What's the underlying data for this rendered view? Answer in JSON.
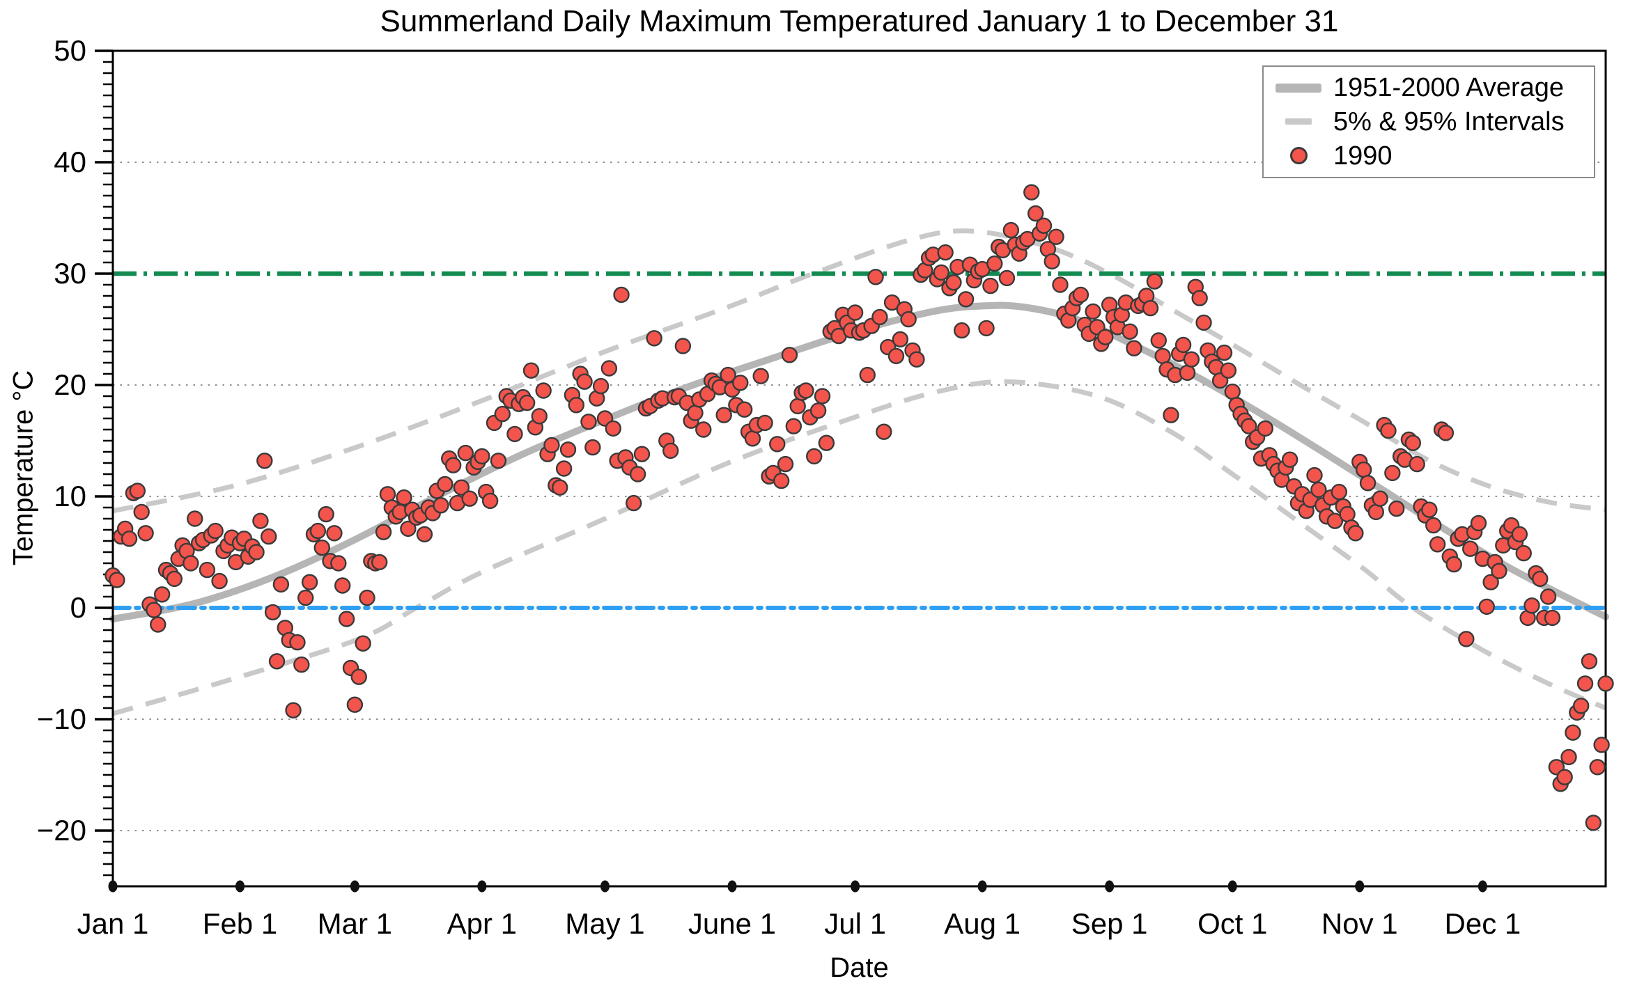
{
  "chart_data": {
    "type": "scatter",
    "title": "Summerland Daily Maximum Temperatured January 1 to December 31",
    "xlabel": "Date",
    "ylabel": "Temperature °C",
    "x_axis": {
      "total_days": 365,
      "month_start_days": [
        0,
        31,
        59,
        90,
        120,
        151,
        181,
        212,
        243,
        273,
        304,
        334
      ],
      "month_labels": [
        "Jan 1",
        "Feb 1",
        "Mar 1",
        "Apr 1",
        "May 1",
        "June 1",
        "Jul 1",
        "Aug 1",
        "Sep 1",
        "Oct 1",
        "Nov 1",
        "Dec 1"
      ]
    },
    "y_axis": {
      "range": [
        -25,
        50
      ],
      "major_tick_values": [
        -20,
        -10,
        0,
        10,
        20,
        30,
        40,
        50
      ],
      "major_tick_labels": [
        "−20",
        "−10",
        "0",
        "10",
        "20",
        "30",
        "40",
        "50"
      ],
      "minor_tick_step": 1,
      "gridline_values": [
        40,
        20,
        10,
        -10,
        -20
      ],
      "gridline_color": "#8f8f8f"
    },
    "reference_lines": [
      {
        "name": "30C-threshold-line",
        "value": 30,
        "color": "#128a50",
        "dash": "34 10 5 10",
        "width": 6.5,
        "cap": "butt"
      },
      {
        "name": "0C-freezing-line",
        "value": 0,
        "color": "#2e9ff2",
        "dash": "24 9 5 9",
        "width": 6,
        "cap": "round"
      }
    ],
    "average_series": {
      "name": "1951-2000 Average",
      "color": "#b5b5b5",
      "width": 10,
      "points": [
        [
          0,
          -1.0
        ],
        [
          20,
          0.4
        ],
        [
          40,
          2.9
        ],
        [
          60,
          6.3
        ],
        [
          80,
          10.2
        ],
        [
          100,
          13.8
        ],
        [
          120,
          16.9
        ],
        [
          140,
          19.8
        ],
        [
          160,
          22.3
        ],
        [
          180,
          24.7
        ],
        [
          200,
          26.6
        ],
        [
          212,
          27.1
        ],
        [
          222,
          27.0
        ],
        [
          235,
          25.9
        ],
        [
          250,
          23.4
        ],
        [
          265,
          20.6
        ],
        [
          280,
          17.4
        ],
        [
          295,
          14.0
        ],
        [
          310,
          10.5
        ],
        [
          325,
          7.0
        ],
        [
          340,
          3.7
        ],
        [
          352,
          1.4
        ],
        [
          364,
          -0.8
        ]
      ]
    },
    "interval_series": [
      {
        "name": "95% Interval",
        "color": "#c9c9c9",
        "width": 7,
        "dash": "30 19",
        "points": [
          [
            0,
            8.7
          ],
          [
            30,
            11.0
          ],
          [
            60,
            14.5
          ],
          [
            90,
            18.6
          ],
          [
            120,
            23.0
          ],
          [
            150,
            27.0
          ],
          [
            170,
            29.9
          ],
          [
            195,
            33.1
          ],
          [
            210,
            33.8
          ],
          [
            228,
            32.4
          ],
          [
            243,
            30.0
          ],
          [
            260,
            26.4
          ],
          [
            275,
            23.2
          ],
          [
            290,
            19.9
          ],
          [
            305,
            16.7
          ],
          [
            320,
            13.4
          ],
          [
            335,
            11.0
          ],
          [
            350,
            9.5
          ],
          [
            364,
            8.8
          ]
        ]
      },
      {
        "name": "5% Interval",
        "color": "#c9c9c9",
        "width": 7,
        "dash": "30 19",
        "points": [
          [
            0,
            -9.5
          ],
          [
            30,
            -6.3
          ],
          [
            60,
            -2.8
          ],
          [
            74,
            0.0
          ],
          [
            90,
            3.2
          ],
          [
            120,
            8.0
          ],
          [
            150,
            13.0
          ],
          [
            180,
            17.0
          ],
          [
            200,
            19.3
          ],
          [
            218,
            20.3
          ],
          [
            240,
            19.0
          ],
          [
            258,
            15.8
          ],
          [
            273,
            12.0
          ],
          [
            290,
            7.5
          ],
          [
            305,
            3.5
          ],
          [
            317,
            0.0
          ],
          [
            334,
            -3.8
          ],
          [
            350,
            -6.8
          ],
          [
            364,
            -9.0
          ]
        ]
      }
    ],
    "scatter_series": {
      "name": "1990",
      "fill": "#f3544c",
      "edge": "#3a3a3a",
      "radius": 10.5,
      "daily_temps_by_month": [
        [
          2.9,
          2.5,
          6.4,
          7.1,
          6.2,
          10.3,
          10.5,
          8.6,
          6.7,
          0.3,
          -0.2,
          -1.5,
          1.2,
          3.4,
          3.1,
          2.6,
          4.4,
          5.6,
          5.1,
          4.0,
          8.0,
          5.8,
          6.1,
          3.4,
          6.5,
          6.9,
          2.4,
          5.1,
          5.6,
          6.3,
          4.1
        ],
        [
          5.8,
          6.2,
          4.6,
          5.5,
          5.0,
          7.8,
          13.2,
          6.4,
          -0.4,
          -4.8,
          2.1,
          -1.8,
          -2.9,
          -9.2,
          -3.1,
          -5.1,
          0.9,
          2.3,
          6.6,
          6.9,
          5.4,
          8.4,
          4.2,
          6.7,
          4.0,
          2.0,
          -1.0,
          -5.4
        ],
        [
          -8.7,
          -6.2,
          -3.2,
          0.9,
          4.2,
          4.0,
          4.1,
          6.8,
          10.2,
          9.0,
          8.2,
          8.6,
          9.9,
          7.1,
          8.8,
          8.1,
          8.3,
          6.6,
          9.0,
          8.5,
          10.5,
          9.2,
          11.1,
          13.4,
          12.8,
          9.4,
          10.8,
          13.9,
          9.8,
          12.6,
          13.1
        ],
        [
          13.6,
          10.4,
          9.6,
          16.6,
          13.2,
          17.4,
          19.0,
          18.6,
          15.6,
          18.3,
          18.9,
          18.4,
          21.3,
          16.2,
          17.2,
          19.5,
          13.8,
          14.6,
          11.0,
          10.8,
          12.5,
          14.2,
          19.1,
          18.2,
          21.0,
          20.3,
          16.7,
          14.4,
          18.8,
          19.9
        ],
        [
          17.0,
          21.5,
          16.1,
          13.2,
          28.1,
          13.5,
          12.6,
          9.4,
          12.0,
          13.8,
          17.9,
          18.1,
          24.2,
          18.6,
          18.8,
          15.0,
          14.1,
          18.9,
          19.0,
          23.5,
          18.4,
          16.8,
          17.5,
          18.7,
          16.0,
          19.2,
          20.4,
          20.1,
          19.8,
          17.3,
          20.9
        ],
        [
          19.6,
          18.2,
          20.2,
          17.8,
          15.8,
          15.2,
          16.4,
          20.8,
          16.6,
          11.8,
          12.1,
          14.7,
          11.4,
          12.9,
          22.7,
          16.3,
          18.1,
          19.3,
          19.5,
          17.1,
          13.6,
          17.7,
          19.0,
          14.8,
          24.8,
          25.1,
          24.4,
          26.3,
          25.6,
          24.9
        ],
        [
          26.5,
          24.7,
          24.9,
          20.9,
          25.3,
          29.7,
          26.1,
          15.8,
          23.4,
          27.4,
          22.6,
          24.1,
          26.8,
          25.9,
          23.1,
          22.3,
          29.9,
          30.3,
          31.4,
          31.7,
          29.5,
          30.1,
          31.9,
          28.7,
          29.2,
          30.6,
          24.9,
          27.7,
          30.8,
          29.4,
          30.2
        ],
        [
          30.4,
          25.1,
          28.9,
          30.9,
          32.4,
          32.1,
          29.6,
          33.9,
          32.6,
          31.8,
          32.8,
          33.1,
          37.3,
          35.4,
          33.6,
          34.3,
          32.2,
          31.1,
          33.3,
          29.0,
          26.4,
          25.8,
          26.9,
          27.8,
          28.1,
          25.4,
          24.6,
          26.6,
          25.2,
          23.7,
          24.3
        ],
        [
          27.2,
          26.1,
          25.2,
          26.3,
          27.4,
          24.8,
          23.3,
          27.1,
          27.3,
          28.0,
          26.9,
          29.3,
          24.0,
          22.6,
          21.4,
          17.3,
          20.9,
          22.8,
          23.6,
          21.1,
          22.3,
          28.8,
          27.8,
          25.6,
          23.1,
          22.1,
          21.6,
          20.4,
          22.9,
          21.3
        ],
        [
          19.4,
          18.2,
          17.4,
          16.8,
          16.3,
          14.9,
          15.3,
          13.4,
          16.1,
          13.7,
          12.9,
          12.3,
          11.5,
          12.6,
          13.3,
          10.9,
          9.4,
          10.2,
          8.7,
          9.7,
          11.9,
          10.6,
          9.2,
          8.2,
          9.9,
          7.8,
          10.4,
          9.1,
          8.4,
          7.2,
          6.7
        ],
        [
          13.1,
          12.4,
          11.2,
          9.2,
          8.6,
          9.8,
          16.4,
          15.9,
          12.1,
          8.9,
          13.6,
          13.3,
          15.1,
          14.8,
          12.9,
          9.1,
          8.3,
          8.8,
          7.4,
          5.7,
          16.0,
          15.7,
          4.6,
          3.9,
          6.2,
          6.6,
          -2.8,
          5.3,
          6.8,
          7.6
        ],
        [
          4.4,
          0.1,
          2.3,
          4.1,
          3.3,
          5.6,
          6.9,
          7.4,
          5.9,
          6.6,
          4.9,
          -0.9,
          0.2,
          3.1,
          2.6,
          -0.9,
          1.0,
          -0.9,
          -14.3,
          -15.8,
          -15.2,
          -13.4,
          -11.2,
          -9.4,
          -8.8,
          -6.8,
          -4.8,
          -19.3,
          -14.3,
          -12.3,
          -6.8
        ]
      ]
    },
    "legend": {
      "entries": [
        {
          "label": "1951-2000 Average"
        },
        {
          "label": "5% & 95% Intervals"
        },
        {
          "label": "1990"
        }
      ]
    }
  }
}
